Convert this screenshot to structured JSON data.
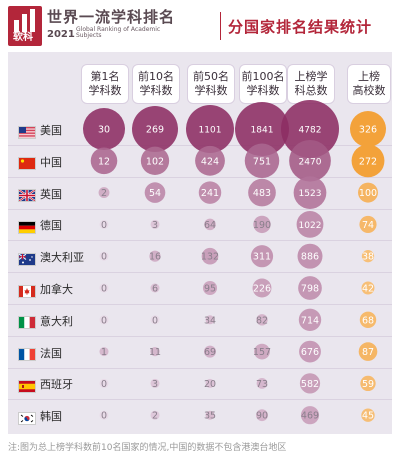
{
  "header": {
    "logo_text": "软科",
    "brand_title": "世界一流学科排名",
    "brand_year": "2021",
    "brand_sub": "Global Ranking of Academic Subjects",
    "page_title": "分国家排名结果统计"
  },
  "note": "注:图为总上榜学科数前10名国家的情况,中国的数据不包含港澳台地区",
  "colors": {
    "brand": "#b3263a",
    "purple_dark": "#8a2a60",
    "purple_light": "#efe7f2",
    "orange": "#f3a23a",
    "orange_light": "#fbe3c4"
  },
  "chart_data": {
    "type": "table",
    "title": "",
    "columns": [
      "第1名学科数",
      "前10名学科数",
      "前50名学科数",
      "前100名学科数",
      "上榜学科总数",
      "上榜高校数"
    ],
    "column_labels": [
      [
        "第1名",
        "学科数"
      ],
      [
        "前10名",
        "学科数"
      ],
      [
        "前50名",
        "学科数"
      ],
      [
        "前100名",
        "学科数"
      ],
      [
        "上榜学",
        "科总数"
      ],
      [
        "上榜",
        "高校数"
      ]
    ],
    "rows": [
      {
        "country": "美国",
        "flag": "us",
        "values": [
          30,
          269,
          1101,
          1841,
          4782,
          326
        ]
      },
      {
        "country": "中国",
        "flag": "cn",
        "values": [
          12,
          102,
          424,
          751,
          2470,
          272
        ]
      },
      {
        "country": "英国",
        "flag": "gb",
        "values": [
          2,
          54,
          241,
          483,
          1523,
          100
        ]
      },
      {
        "country": "德国",
        "flag": "de",
        "values": [
          0,
          3,
          64,
          190,
          1022,
          74
        ]
      },
      {
        "country": "澳大利亚",
        "flag": "au",
        "values": [
          0,
          16,
          132,
          311,
          886,
          38
        ]
      },
      {
        "country": "加拿大",
        "flag": "ca",
        "values": [
          0,
          6,
          95,
          226,
          798,
          42
        ]
      },
      {
        "country": "意大利",
        "flag": "it",
        "values": [
          0,
          0,
          34,
          82,
          714,
          68
        ]
      },
      {
        "country": "法国",
        "flag": "fr",
        "values": [
          1,
          11,
          69,
          157,
          676,
          87
        ]
      },
      {
        "country": "西班牙",
        "flag": "es",
        "values": [
          0,
          3,
          20,
          73,
          582,
          59
        ]
      },
      {
        "country": "韩国",
        "flag": "kr",
        "values": [
          0,
          2,
          35,
          90,
          469,
          45
        ]
      }
    ]
  }
}
